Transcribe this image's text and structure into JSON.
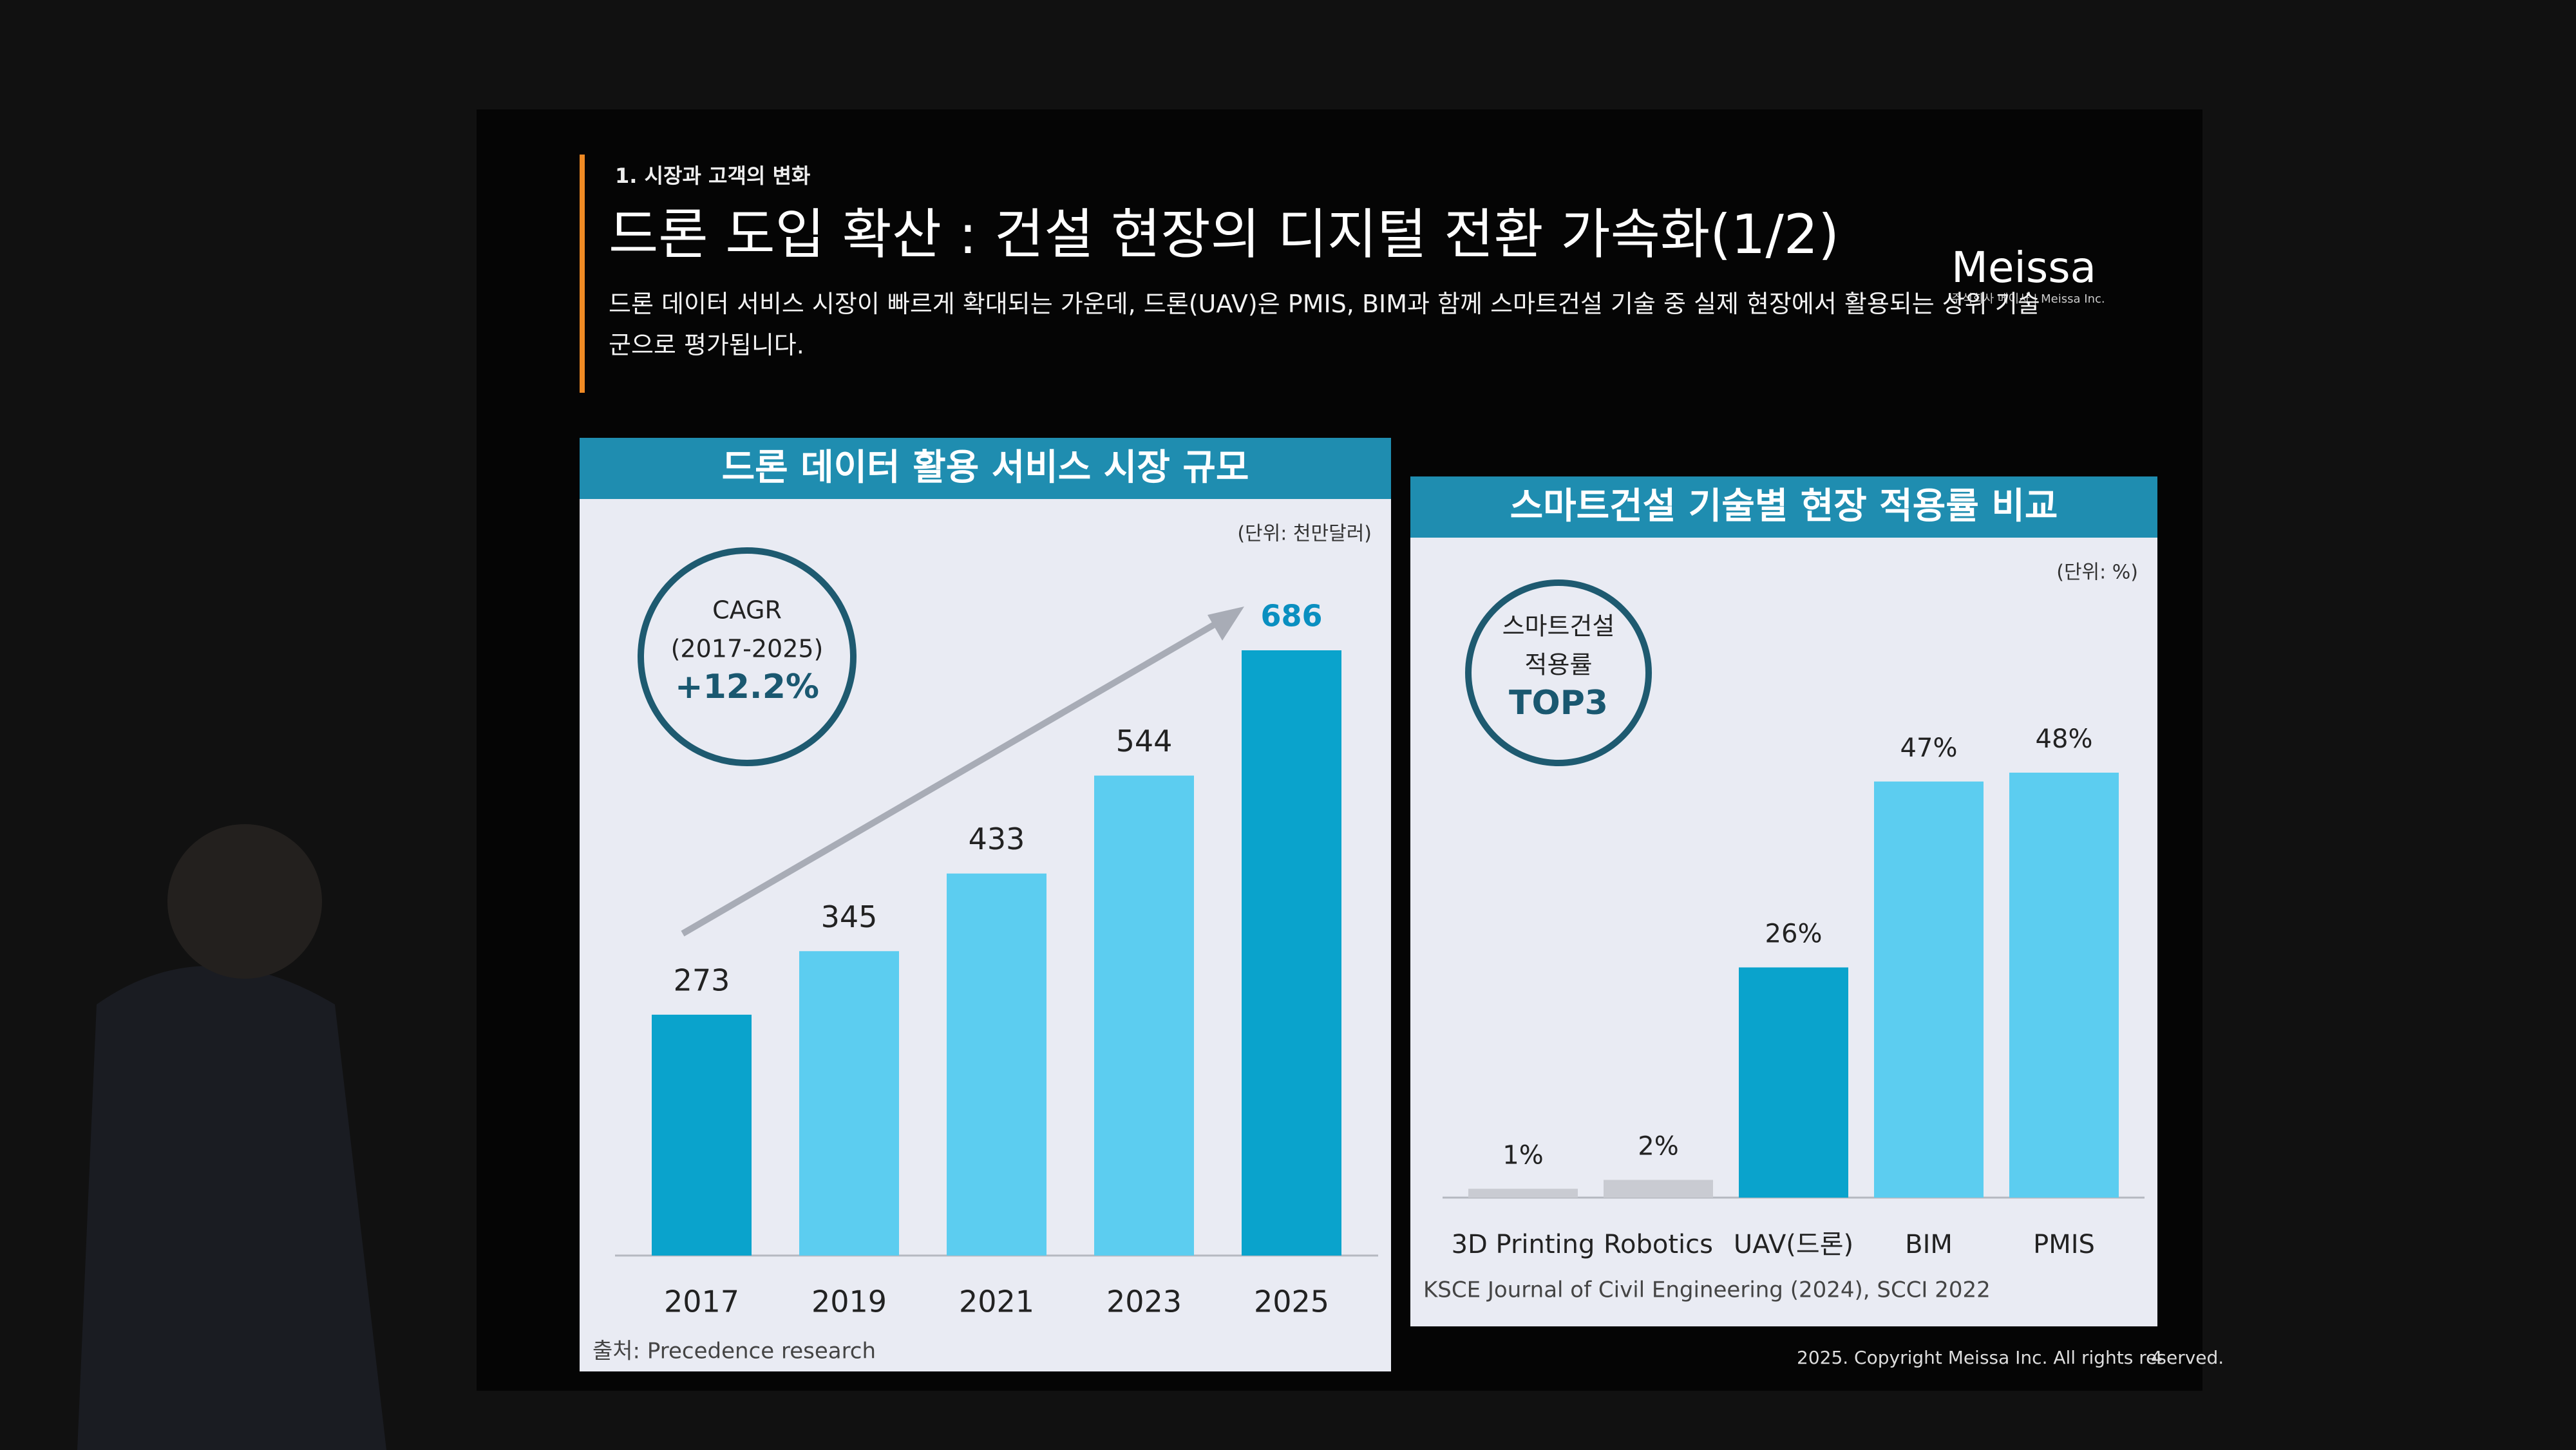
{
  "slide": {
    "section": "1. 시장과 고객의 변화",
    "title": "드론 도입 확산 : 건설 현장의 디지털 전환 가속화(1/2)",
    "subtitle": "드론 데이터 서비스 시장이 빠르게 확대되는 가운데, 드론(UAV)은 PMIS, BIM과 함께 스마트건설 기술 중 실제 현장에서 활용되는 상위 기술군으로 평가됩니다.",
    "logo": "Meissa",
    "logo_sub": "주식회사 메이사 | Meissa Inc.",
    "footer": "2025. Copyright Meissa Inc. All rights reserved.",
    "page": "4"
  },
  "chart_data": [
    {
      "type": "bar",
      "title": "드론 데이터 활용 서비스 시장 규모",
      "unit": "(단위: 천만달러)",
      "categories": [
        "2017",
        "2019",
        "2021",
        "2023",
        "2025"
      ],
      "values": [
        273,
        345,
        433,
        544,
        686
      ],
      "colors": [
        "#0aa3cc",
        "#5ccdf0",
        "#5ccdf0",
        "#5ccdf0",
        "#0aa3cc"
      ],
      "annotation": [
        "CAGR",
        "(2017-2025)",
        "+12.2%"
      ],
      "source": "출처: Precedence research"
    },
    {
      "type": "bar",
      "title": "스마트건설 기술별 현장 적용률 비교",
      "unit": "(단위: %)",
      "categories": [
        "3D Printing",
        "Robotics",
        "UAV(드론)",
        "BIM",
        "PMIS"
      ],
      "values": [
        1,
        2,
        26,
        47,
        48
      ],
      "value_labels": [
        "1%",
        "2%",
        "26%",
        "47%",
        "48%"
      ],
      "colors": [
        "#c9cbd2",
        "#c9cbd2",
        "#0aa3cc",
        "#5ccdf0",
        "#5ccdf0"
      ],
      "annotation": [
        "스마트건설",
        "적용률",
        "TOP3"
      ],
      "source": "KSCE Journal of Civil Engineering (2024), SCCI 2022"
    }
  ]
}
